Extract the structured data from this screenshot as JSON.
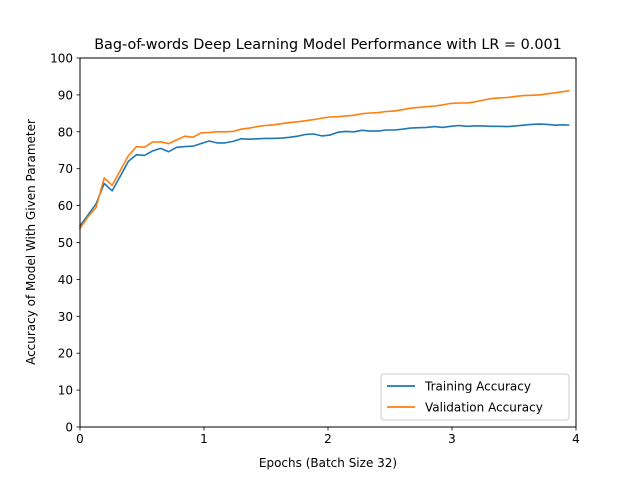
{
  "chart_data": {
    "type": "line",
    "title": "Bag-of-words Deep Learning Model Performance with LR = 0.001",
    "xlabel": "Epochs (Batch Size 32)",
    "ylabel": "Accuracy of Model With Given Parameter",
    "xlim": [
      0,
      4
    ],
    "ylim": [
      0,
      100
    ],
    "xticks": [
      0,
      1,
      2,
      3,
      4
    ],
    "yticks": [
      0,
      10,
      20,
      30,
      40,
      50,
      60,
      70,
      80,
      90,
      100
    ],
    "grid": false,
    "legend_position": "lower right",
    "x": [
      0.0,
      0.065,
      0.13,
      0.195,
      0.26,
      0.325,
      0.39,
      0.455,
      0.52,
      0.585,
      0.65,
      0.715,
      0.78,
      0.845,
      0.91,
      0.975,
      1.04,
      1.105,
      1.17,
      1.235,
      1.3,
      1.365,
      1.43,
      1.495,
      1.56,
      1.625,
      1.69,
      1.755,
      1.82,
      1.885,
      1.95,
      2.015,
      2.08,
      2.145,
      2.21,
      2.275,
      2.34,
      2.405,
      2.47,
      2.535,
      2.6,
      2.665,
      2.73,
      2.795,
      2.86,
      2.925,
      2.99,
      3.055,
      3.12,
      3.185,
      3.25,
      3.315,
      3.38,
      3.445,
      3.51,
      3.575,
      3.64,
      3.705,
      3.77,
      3.835,
      3.9,
      3.94
    ],
    "series": [
      {
        "name": "Training Accuracy",
        "color": "#1f77b4",
        "values": [
          54.5,
          57.5,
          60.5,
          66.0,
          64.0,
          68.0,
          72.0,
          73.8,
          73.6,
          74.8,
          75.5,
          74.6,
          75.8,
          76.0,
          76.1,
          76.8,
          77.5,
          77.0,
          77.0,
          77.4,
          78.1,
          78.0,
          78.1,
          78.2,
          78.2,
          78.3,
          78.5,
          78.8,
          79.3,
          79.4,
          78.9,
          79.1,
          79.9,
          80.1,
          80.0,
          80.4,
          80.2,
          80.2,
          80.5,
          80.5,
          80.7,
          81.0,
          81.1,
          81.2,
          81.4,
          81.2,
          81.5,
          81.7,
          81.5,
          81.6,
          81.6,
          81.5,
          81.5,
          81.4,
          81.6,
          81.8,
          82.0,
          82.1,
          82.0,
          81.8,
          81.9,
          81.8
        ]
      },
      {
        "name": "Validation Accuracy",
        "color": "#ff7f0e",
        "values": [
          53.8,
          57.0,
          59.5,
          67.5,
          65.5,
          69.5,
          73.5,
          76.0,
          75.8,
          77.2,
          77.3,
          76.8,
          77.8,
          78.8,
          78.5,
          79.7,
          79.8,
          80.0,
          80.0,
          80.1,
          80.7,
          81.0,
          81.4,
          81.7,
          81.9,
          82.2,
          82.5,
          82.7,
          83.0,
          83.3,
          83.7,
          84.0,
          84.1,
          84.3,
          84.5,
          84.9,
          85.1,
          85.2,
          85.5,
          85.6,
          86.0,
          86.4,
          86.6,
          86.8,
          87.0,
          87.3,
          87.7,
          87.8,
          87.8,
          88.1,
          88.6,
          89.0,
          89.2,
          89.3,
          89.6,
          89.8,
          89.9,
          90.0,
          90.3,
          90.6,
          90.9,
          91.1
        ]
      }
    ]
  }
}
